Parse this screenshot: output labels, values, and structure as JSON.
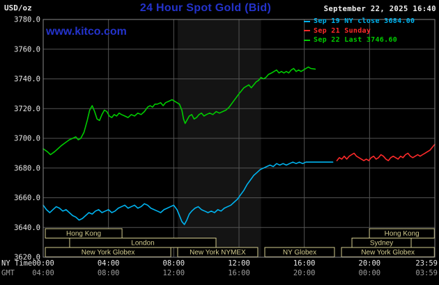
{
  "colors": {
    "accent_blue": "#2433cc",
    "axis_text": "#e8e8e8",
    "gmt_text": "#9f9f9f",
    "session_box": "#d2cb8e"
  },
  "header": {
    "units": "USD/oz",
    "title": "24 Hour Spot Gold (Bid)",
    "datetime": "September 22, 2025 16:40",
    "watermark": "www.kitco.com"
  },
  "legend": {
    "items": [
      {
        "label": "Sep 19 NY close 3684.00",
        "color": "#00b4f0"
      },
      {
        "label": "Sep 21 Sunday",
        "color": "#ff2a2a"
      },
      {
        "label": "Sep 22 Last 3746.60",
        "color": "#00cc00"
      }
    ]
  },
  "axes": {
    "ny_caption": "NY Time",
    "gmt_caption": "GMT"
  },
  "chart_data": {
    "type": "line",
    "title": "24 Hour Spot Gold (Bid)",
    "xlabel": "NY Time / GMT",
    "ylabel": "USD/oz",
    "x_range": [
      0,
      24
    ],
    "y_range": [
      3620,
      3780
    ],
    "y_step": 20,
    "grid_color": "#545454",
    "border_color": "#8a8a8a",
    "y_tick_labels": [
      "3780.0",
      "3760.0",
      "3740.0",
      "3720.0",
      "3700.0",
      "3680.0",
      "3660.0",
      "3640.0",
      "3620.0"
    ],
    "x_ticks": [
      {
        "h": 0,
        "ny": "00:00",
        "gmt": "04:00"
      },
      {
        "h": 4,
        "ny": "04:00",
        "gmt": "08:00"
      },
      {
        "h": 8,
        "ny": "08:00",
        "gmt": "12:00"
      },
      {
        "h": 12,
        "ny": "12:00",
        "gmt": "16:00"
      },
      {
        "h": 16,
        "ny": "16:00",
        "gmt": "20:00"
      },
      {
        "h": 20,
        "ny": "20:00",
        "gmt": "00:00"
      },
      {
        "h": 24,
        "ny": "23:59",
        "gmt": "03:59"
      }
    ],
    "bands": [
      {
        "from": 8.24,
        "to": 13.35,
        "color": "#141414"
      }
    ],
    "series": [
      {
        "name": "Sep 19 NY close",
        "color": "#00b4f0",
        "points": [
          [
            0,
            3655
          ],
          [
            0.2,
            3652
          ],
          [
            0.4,
            3650
          ],
          [
            0.6,
            3652
          ],
          [
            0.8,
            3654
          ],
          [
            1.0,
            3653
          ],
          [
            1.2,
            3651
          ],
          [
            1.4,
            3652
          ],
          [
            1.6,
            3650
          ],
          [
            1.8,
            3648
          ],
          [
            2.0,
            3647
          ],
          [
            2.2,
            3645
          ],
          [
            2.4,
            3646
          ],
          [
            2.6,
            3648
          ],
          [
            2.8,
            3650
          ],
          [
            3.0,
            3649
          ],
          [
            3.2,
            3651
          ],
          [
            3.4,
            3652
          ],
          [
            3.6,
            3650
          ],
          [
            3.8,
            3651
          ],
          [
            4.0,
            3652
          ],
          [
            4.2,
            3650
          ],
          [
            4.4,
            3651
          ],
          [
            4.6,
            3653
          ],
          [
            4.8,
            3654
          ],
          [
            5.0,
            3655
          ],
          [
            5.2,
            3653
          ],
          [
            5.4,
            3654
          ],
          [
            5.6,
            3655
          ],
          [
            5.8,
            3653
          ],
          [
            6.0,
            3654
          ],
          [
            6.2,
            3656
          ],
          [
            6.4,
            3655
          ],
          [
            6.6,
            3653
          ],
          [
            6.8,
            3652
          ],
          [
            7.0,
            3651
          ],
          [
            7.2,
            3650
          ],
          [
            7.4,
            3652
          ],
          [
            7.6,
            3653
          ],
          [
            7.8,
            3654
          ],
          [
            8.0,
            3655
          ],
          [
            8.2,
            3652
          ],
          [
            8.35,
            3648
          ],
          [
            8.5,
            3644
          ],
          [
            8.65,
            3642
          ],
          [
            8.8,
            3645
          ],
          [
            8.95,
            3649
          ],
          [
            9.1,
            3651
          ],
          [
            9.3,
            3653
          ],
          [
            9.5,
            3654
          ],
          [
            9.7,
            3652
          ],
          [
            9.9,
            3651
          ],
          [
            10.1,
            3650
          ],
          [
            10.3,
            3651
          ],
          [
            10.5,
            3650
          ],
          [
            10.7,
            3652
          ],
          [
            10.9,
            3651
          ],
          [
            11.1,
            3653
          ],
          [
            11.3,
            3654
          ],
          [
            11.5,
            3655
          ],
          [
            11.7,
            3657
          ],
          [
            11.9,
            3659
          ],
          [
            12.1,
            3662
          ],
          [
            12.3,
            3665
          ],
          [
            12.5,
            3669
          ],
          [
            12.7,
            3672
          ],
          [
            12.9,
            3675
          ],
          [
            13.1,
            3677
          ],
          [
            13.3,
            3679
          ],
          [
            13.5,
            3680
          ],
          [
            13.7,
            3681
          ],
          [
            13.9,
            3682
          ],
          [
            14.1,
            3681
          ],
          [
            14.3,
            3683
          ],
          [
            14.5,
            3682
          ],
          [
            14.7,
            3683
          ],
          [
            14.9,
            3682
          ],
          [
            15.1,
            3683
          ],
          [
            15.3,
            3684
          ],
          [
            15.5,
            3683
          ],
          [
            15.7,
            3684
          ],
          [
            15.9,
            3683
          ],
          [
            16.1,
            3684
          ],
          [
            16.5,
            3684
          ],
          [
            17.0,
            3684
          ],
          [
            17.75,
            3684
          ]
        ]
      },
      {
        "name": "Sep 21 Sunday",
        "color": "#ff2a2a",
        "points": [
          [
            18.0,
            3685
          ],
          [
            18.15,
            3687
          ],
          [
            18.3,
            3686
          ],
          [
            18.45,
            3688
          ],
          [
            18.6,
            3686
          ],
          [
            18.75,
            3688
          ],
          [
            18.9,
            3689
          ],
          [
            19.05,
            3690
          ],
          [
            19.2,
            3688
          ],
          [
            19.35,
            3687
          ],
          [
            19.5,
            3686
          ],
          [
            19.65,
            3685
          ],
          [
            19.8,
            3686
          ],
          [
            19.95,
            3685
          ],
          [
            20.1,
            3687
          ],
          [
            20.25,
            3688
          ],
          [
            20.4,
            3686
          ],
          [
            20.55,
            3687
          ],
          [
            20.7,
            3689
          ],
          [
            20.85,
            3688
          ],
          [
            21.0,
            3686
          ],
          [
            21.15,
            3685
          ],
          [
            21.3,
            3687
          ],
          [
            21.45,
            3688
          ],
          [
            21.6,
            3687
          ],
          [
            21.75,
            3686
          ],
          [
            21.9,
            3688
          ],
          [
            22.05,
            3687
          ],
          [
            22.2,
            3689
          ],
          [
            22.35,
            3690
          ],
          [
            22.5,
            3688
          ],
          [
            22.65,
            3687
          ],
          [
            22.8,
            3688
          ],
          [
            22.95,
            3689
          ],
          [
            23.1,
            3688
          ],
          [
            23.25,
            3689
          ],
          [
            23.4,
            3690
          ],
          [
            23.55,
            3691
          ],
          [
            23.7,
            3692
          ],
          [
            23.85,
            3694
          ],
          [
            24.0,
            3696
          ]
        ]
      },
      {
        "name": "Sep 22 Last",
        "color": "#00cc00",
        "points": [
          [
            0,
            3693
          ],
          [
            0.25,
            3691
          ],
          [
            0.45,
            3689
          ],
          [
            0.7,
            3691
          ],
          [
            0.9,
            3693
          ],
          [
            1.1,
            3695
          ],
          [
            1.35,
            3697
          ],
          [
            1.6,
            3699
          ],
          [
            1.8,
            3700
          ],
          [
            2.0,
            3701
          ],
          [
            2.15,
            3699
          ],
          [
            2.3,
            3700
          ],
          [
            2.5,
            3704
          ],
          [
            2.7,
            3712
          ],
          [
            2.85,
            3719
          ],
          [
            3.0,
            3722
          ],
          [
            3.15,
            3718
          ],
          [
            3.3,
            3713
          ],
          [
            3.45,
            3712
          ],
          [
            3.6,
            3716
          ],
          [
            3.75,
            3719
          ],
          [
            3.9,
            3718
          ],
          [
            4.05,
            3715
          ],
          [
            4.2,
            3714
          ],
          [
            4.35,
            3716
          ],
          [
            4.5,
            3715
          ],
          [
            4.65,
            3717
          ],
          [
            4.8,
            3716
          ],
          [
            5.0,
            3715
          ],
          [
            5.2,
            3714
          ],
          [
            5.4,
            3716
          ],
          [
            5.6,
            3715
          ],
          [
            5.8,
            3717
          ],
          [
            6.0,
            3716
          ],
          [
            6.2,
            3718
          ],
          [
            6.4,
            3721
          ],
          [
            6.55,
            3722
          ],
          [
            6.7,
            3721
          ],
          [
            6.85,
            3723
          ],
          [
            7.0,
            3723
          ],
          [
            7.2,
            3724
          ],
          [
            7.35,
            3722
          ],
          [
            7.5,
            3724
          ],
          [
            7.7,
            3725
          ],
          [
            7.9,
            3726
          ],
          [
            8.05,
            3725
          ],
          [
            8.2,
            3724
          ],
          [
            8.35,
            3723
          ],
          [
            8.5,
            3719
          ],
          [
            8.6,
            3713
          ],
          [
            8.7,
            3710
          ],
          [
            8.8,
            3712
          ],
          [
            8.95,
            3715
          ],
          [
            9.1,
            3716
          ],
          [
            9.25,
            3713
          ],
          [
            9.4,
            3714
          ],
          [
            9.55,
            3716
          ],
          [
            9.7,
            3717
          ],
          [
            9.85,
            3715
          ],
          [
            10.0,
            3716
          ],
          [
            10.2,
            3717
          ],
          [
            10.4,
            3716
          ],
          [
            10.6,
            3718
          ],
          [
            10.8,
            3717
          ],
          [
            11.0,
            3718
          ],
          [
            11.2,
            3719
          ],
          [
            11.4,
            3721
          ],
          [
            11.6,
            3724
          ],
          [
            11.8,
            3727
          ],
          [
            12.0,
            3730
          ],
          [
            12.15,
            3732
          ],
          [
            12.3,
            3734
          ],
          [
            12.45,
            3735
          ],
          [
            12.6,
            3736
          ],
          [
            12.75,
            3734
          ],
          [
            12.9,
            3736
          ],
          [
            13.05,
            3738
          ],
          [
            13.2,
            3739
          ],
          [
            13.35,
            3741
          ],
          [
            13.5,
            3740
          ],
          [
            13.65,
            3741
          ],
          [
            13.8,
            3743
          ],
          [
            14.0,
            3744
          ],
          [
            14.15,
            3745
          ],
          [
            14.3,
            3746
          ],
          [
            14.45,
            3744
          ],
          [
            14.6,
            3745
          ],
          [
            14.75,
            3744
          ],
          [
            14.9,
            3745
          ],
          [
            15.05,
            3744
          ],
          [
            15.2,
            3746
          ],
          [
            15.35,
            3747
          ],
          [
            15.5,
            3745
          ],
          [
            15.65,
            3746
          ],
          [
            15.8,
            3745
          ],
          [
            15.95,
            3746
          ],
          [
            16.1,
            3747
          ],
          [
            16.25,
            3748
          ],
          [
            16.4,
            3747
          ],
          [
            16.67,
            3746.6
          ]
        ]
      }
    ],
    "sessions": {
      "box_color": "#d2cb8e",
      "items": [
        {
          "row": 1,
          "from": 0.13,
          "to": 4.83,
          "label": "Hong Kong"
        },
        {
          "row": 1,
          "from": 19.99,
          "to": 23.97,
          "label": "Hong Kong"
        },
        {
          "row": 2,
          "from": 1.62,
          "to": 10.59,
          "label": "London"
        },
        {
          "row": 2,
          "from": 18.92,
          "to": 22.55,
          "label": "Sydney"
        },
        {
          "row": 3,
          "from": 0.13,
          "to": 7.82,
          "label": "New York Globex"
        },
        {
          "row": 3,
          "from": 8.24,
          "to": 13.15,
          "label": "New York NYMEX"
        },
        {
          "row": 3,
          "from": 13.58,
          "to": 17.85,
          "label": "NY Globex"
        },
        {
          "row": 3,
          "from": 18.28,
          "to": 23.97,
          "label": "New York Globex"
        }
      ]
    }
  }
}
